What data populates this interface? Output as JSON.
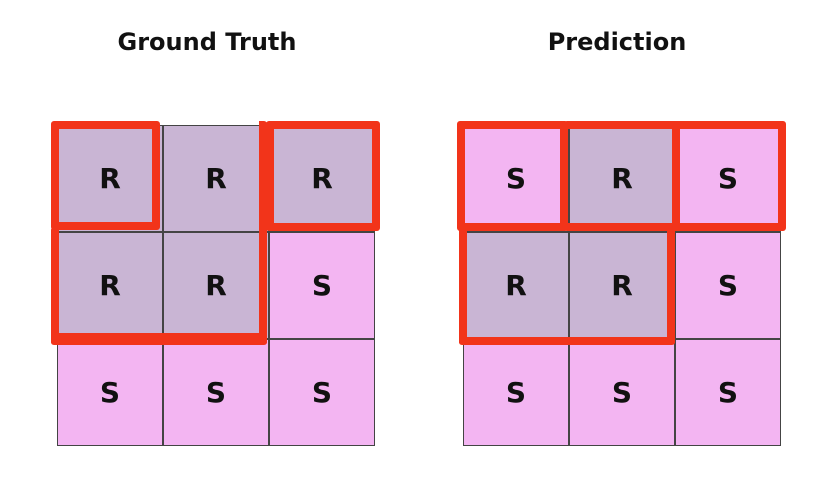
{
  "titles": {
    "ground_truth": "Ground Truth",
    "prediction": "Prediction"
  },
  "colors": {
    "r_cell": "#c9b5d4",
    "s_cell": "#f3b5f2",
    "outline": "#f2341a"
  },
  "ground_truth": {
    "cells": [
      [
        "R",
        "R",
        "R"
      ],
      [
        "R",
        "R",
        "S"
      ],
      [
        "S",
        "S",
        "S"
      ]
    ]
  },
  "prediction": {
    "cells": [
      [
        "S",
        "R",
        "S"
      ],
      [
        "R",
        "R",
        "S"
      ],
      [
        "S",
        "S",
        "S"
      ]
    ]
  }
}
